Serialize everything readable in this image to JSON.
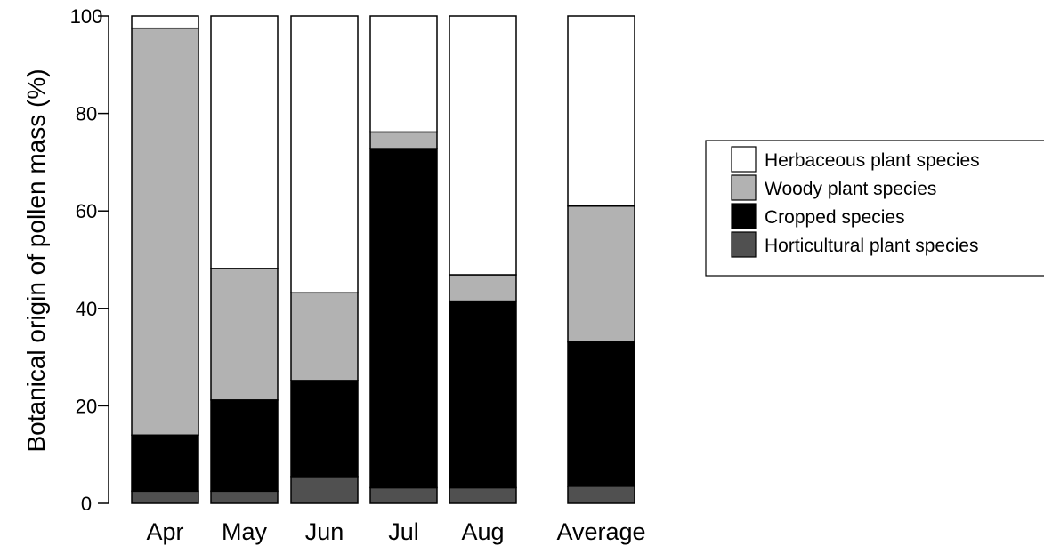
{
  "chart_data": {
    "type": "bar",
    "stacked": true,
    "categories": [
      "Apr",
      "May",
      "Jun",
      "Jul",
      "Aug",
      "Average"
    ],
    "ylabel": "Botanical origin of pollen mass (%)",
    "xlabel": "",
    "ylim": [
      0,
      100
    ],
    "yticks": [
      "0",
      "20",
      "40",
      "60",
      "80",
      "100"
    ],
    "grid": false,
    "legend_position": "right",
    "series": [
      {
        "name": "Horticultural plant species",
        "color": "#505050",
        "values": [
          2.5,
          2.5,
          5.5,
          3.2,
          3.2,
          3.5
        ]
      },
      {
        "name": "Cropped species",
        "color": "#000000",
        "values": [
          11.5,
          18.7,
          19.7,
          69.6,
          38.3,
          29.6
        ]
      },
      {
        "name": "Woody plant species",
        "color": "#b2b2b2",
        "values": [
          83.5,
          27.0,
          18.0,
          3.4,
          5.4,
          27.9
        ]
      },
      {
        "name": "Herbaceous plant species",
        "color": "#ffffff",
        "values": [
          2.5,
          51.8,
          56.8,
          23.8,
          53.1,
          39.0
        ]
      }
    ],
    "legend_order": [
      "Herbaceous plant species",
      "Woody plant species",
      "Cropped species",
      "Horticultural plant species"
    ]
  }
}
